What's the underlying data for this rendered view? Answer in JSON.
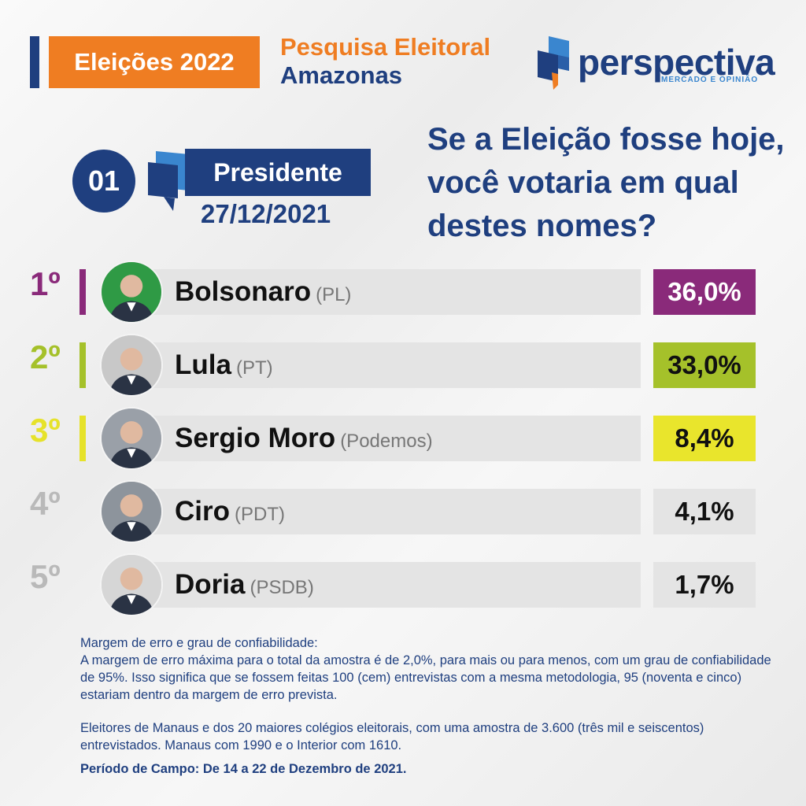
{
  "header": {
    "badge": "Eleições 2022",
    "title_line1": "Pesquisa Eleitoral",
    "title_line2": "Amazonas",
    "logo_name": "perspectiva",
    "logo_tagline": "MERCADO E OPINIÃO"
  },
  "question_block": {
    "number": "01",
    "category": "Presidente",
    "date": "27/12/2021",
    "question": "Se a Eleição fosse hoje, você votaria em qual destes nomes?"
  },
  "candidates": [
    {
      "rank": "1º",
      "name": "Bolsonaro",
      "party": "(PL)",
      "pct": "36,0%",
      "rank_color": "#8a2a7a",
      "box_color": "#8a2a7a",
      "pct_text_color": "#ffffff",
      "avatar_bg": "#2f9a45"
    },
    {
      "rank": "2º",
      "name": "Lula",
      "party": "(PT)",
      "pct": "33,0%",
      "rank_color": "#a5c12a",
      "box_color": "#a5c12a",
      "pct_text_color": "#111111",
      "avatar_bg": "#c8c8c8"
    },
    {
      "rank": "3º",
      "name": "Sergio Moro",
      "party": "(Podemos)",
      "pct": "8,4%",
      "rank_color": "#e6e22a",
      "box_color": "#e9e52c",
      "pct_text_color": "#111111",
      "avatar_bg": "#9aa0a8"
    },
    {
      "rank": "4º",
      "name": "Ciro",
      "party": "(PDT)",
      "pct": "4,1%",
      "rank_color": "#b9b9b9",
      "box_color": "#e4e4e4",
      "pct_text_color": "#111111",
      "avatar_bg": "#8d949c"
    },
    {
      "rank": "5º",
      "name": "Doria",
      "party": "(PSDB)",
      "pct": "1,7%",
      "rank_color": "#b9b9b9",
      "box_color": "#e4e4e4",
      "pct_text_color": "#111111",
      "avatar_bg": "#d6d6d6"
    }
  ],
  "footer": {
    "margin_title": "Margem de erro e grau de confiabilidade:",
    "margin_text": "A margem de erro máxima para o total da amostra é de 2,0%, para mais ou para menos, com um grau de confiabilidade de 95%. Isso significa que se fossem feitas 100 (cem) entrevistas com a mesma metodologia, 95 (noventa e cinco) estariam dentro da margem de erro prevista.",
    "sample_text": "Eleitores de Manaus e dos 20 maiores colégios eleitorais, com uma amostra de 3.600 (três mil e seiscentos) entrevistados. Manaus com 1990 e o Interior com 1610.",
    "period": "Período de Campo: De 14 a 22 de Dezembro de 2021."
  },
  "colors": {
    "navy": "#1f3f7f",
    "orange": "#ef7d22",
    "light_blue": "#3a86cf"
  }
}
